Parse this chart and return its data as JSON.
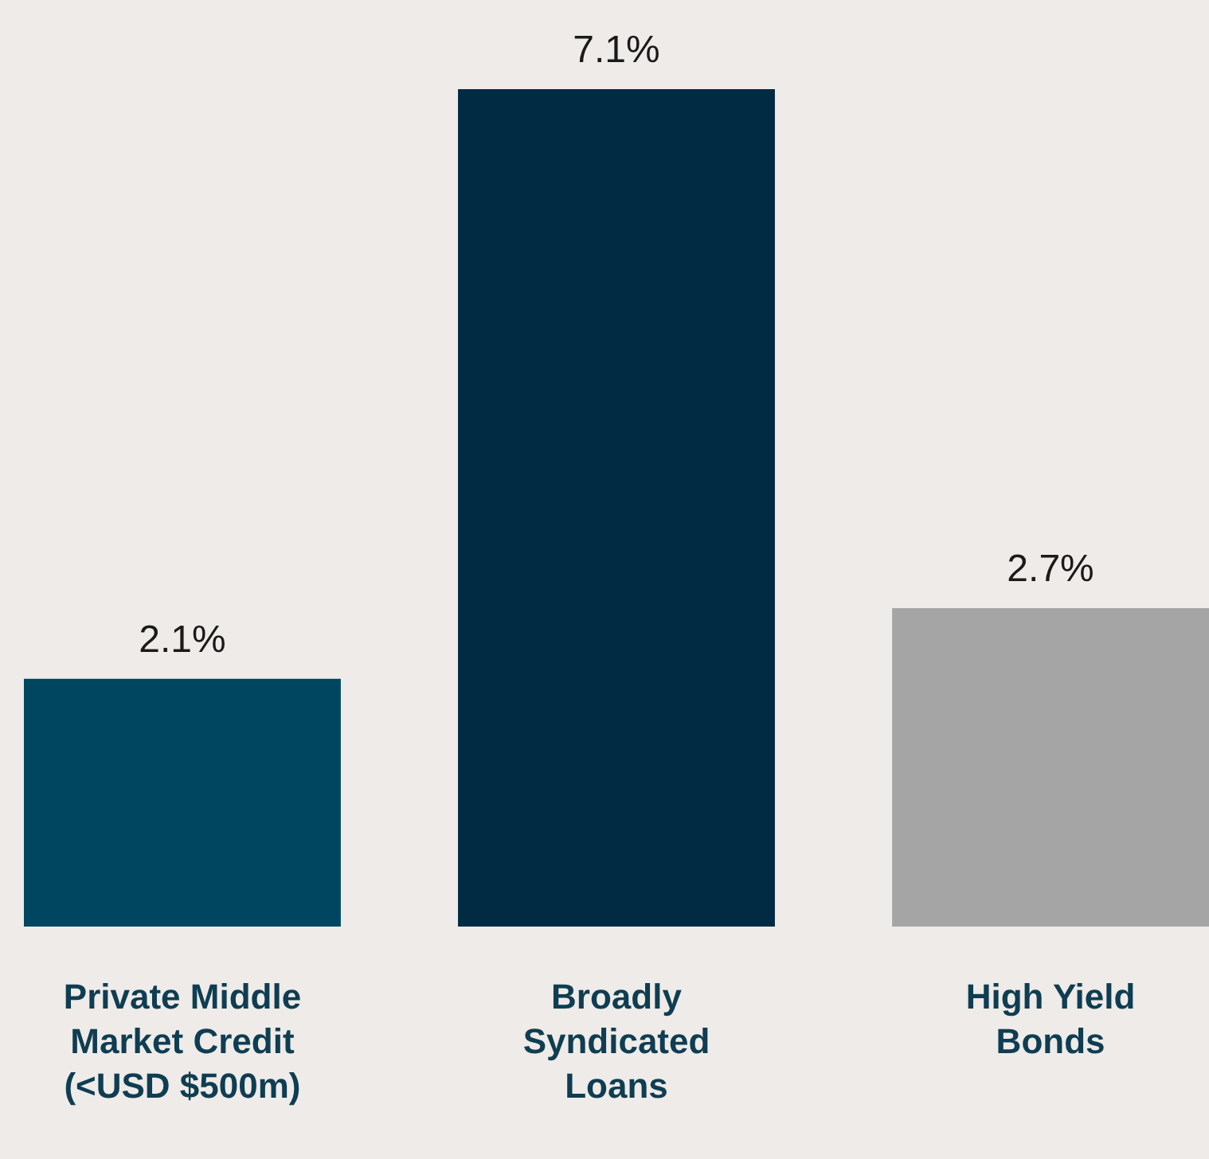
{
  "chart_data": {
    "type": "bar",
    "categories": [
      "Private Middle Market Credit (<USD $500m)",
      "Broadly Syndicated Loans",
      "High Yield Bonds"
    ],
    "values": [
      2.1,
      7.1,
      2.7
    ],
    "colors": [
      "#004660",
      "#002b42",
      "#a5a5a5"
    ],
    "value_labels": [
      "2.1%",
      "7.1%",
      "2.7%"
    ]
  }
}
